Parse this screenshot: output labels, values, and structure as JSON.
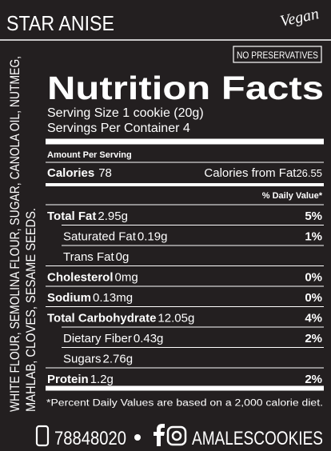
{
  "header": {
    "flavor": "STAR ANISE",
    "badge": "Vegan",
    "tag": "NO PRESERVATIVES"
  },
  "ingredients": [
    "WHITE FLOUR, SEMOLINA FLOUR, SUGAR, CANOLA OIL, NUTMEG,",
    "MAHLAB, CLOVES, SESAME SEEDS."
  ],
  "nutrition": {
    "title": "Nutrition Facts",
    "serving_size": "Serving Size 1 cookie (20g)",
    "servings": "Servings Per Container 4",
    "amount_per_serving": "Amount Per Serving",
    "calories": {
      "label": "Calories",
      "value": "78"
    },
    "calories_from_fat": {
      "label": "Calories from Fat",
      "value": "26.55"
    },
    "daily_value_header": "% Daily Value*",
    "rows": [
      {
        "label": "Total Fat",
        "amount": "2.95g",
        "dv": "5%",
        "sub": [
          {
            "label": "Saturated Fat",
            "amount": "0.19g",
            "dv": "1%"
          },
          {
            "label": "Trans Fat",
            "amount": "0g"
          }
        ]
      },
      {
        "label": "Cholesterol",
        "amount": "0mg",
        "dv": "0%"
      },
      {
        "label": "Sodium",
        "amount": "0.13mg",
        "dv": "0%"
      },
      {
        "label": "Total Carbohydrate",
        "amount": "12.05g",
        "dv": "4%",
        "sub": [
          {
            "label": "Dietary Fiber",
            "amount": "0.43g",
            "dv": "2%"
          },
          {
            "label": "Sugars",
            "amount": "2.76g"
          }
        ]
      },
      {
        "label": "Protein",
        "amount": "1.2g",
        "dv": "2%"
      }
    ],
    "footnote": "*Percent Daily Values are based on a 2,000 calorie diet."
  },
  "footer": {
    "phone": "78848020",
    "handle": "AMALESCOOKIES"
  }
}
